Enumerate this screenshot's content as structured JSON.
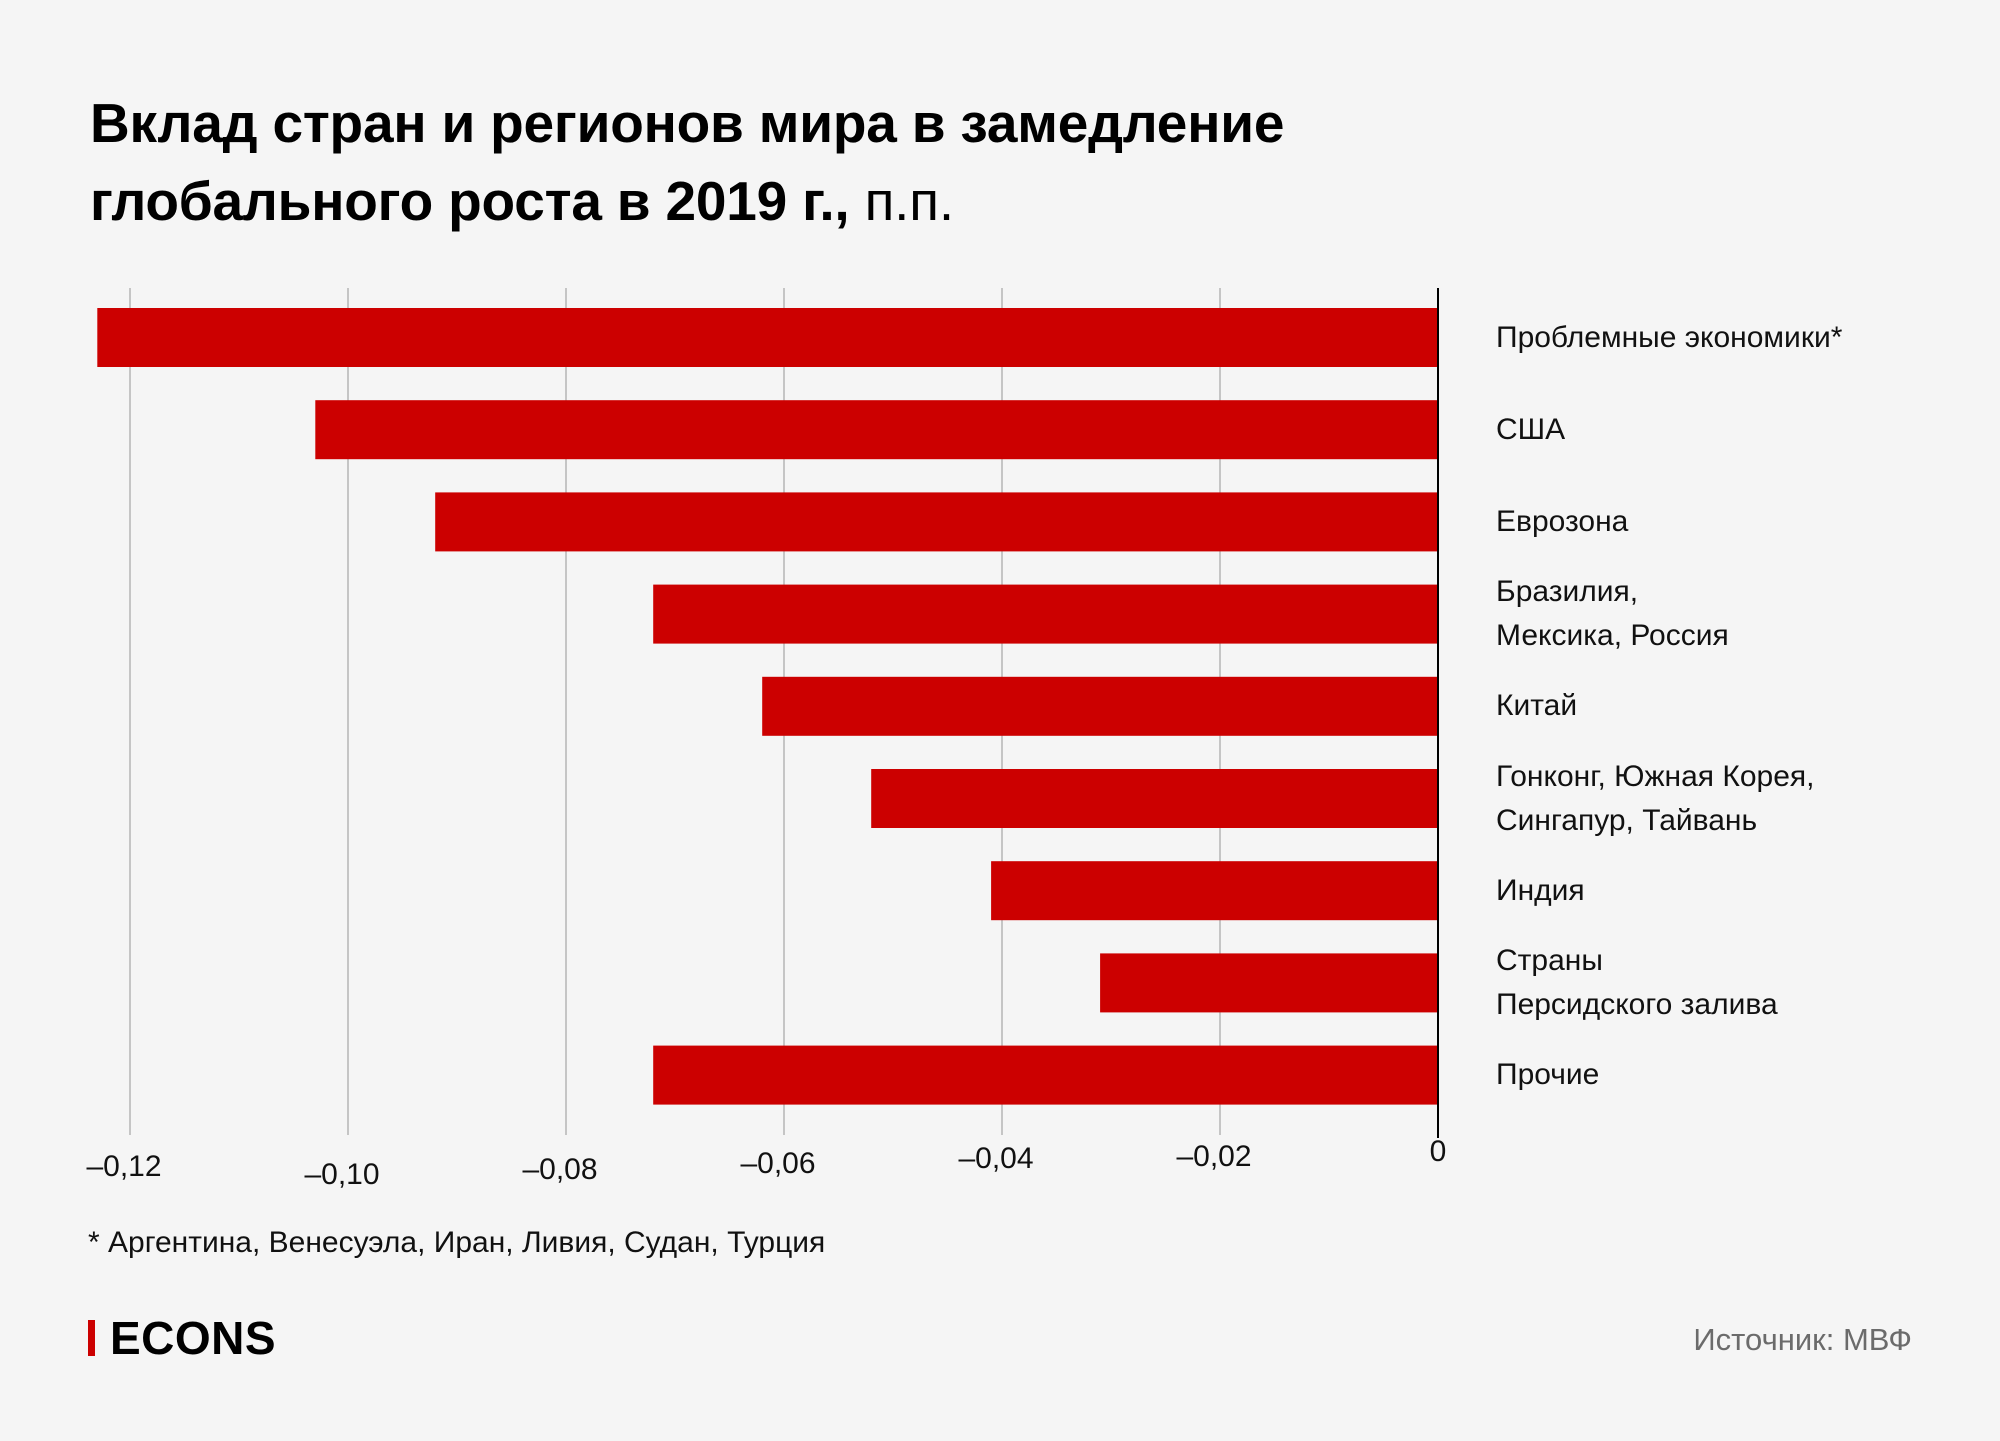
{
  "header": {
    "title_bold_line1": "Вклад стран и регионов мира в замедление",
    "title_bold_line2": "глобального роста в 2019 г.,",
    "title_unit": " п.п."
  },
  "chart_data": {
    "type": "bar",
    "orientation": "horizontal",
    "title": "Вклад стран и регионов мира в замедление глобального роста в 2019 г., п.п.",
    "xlabel": "",
    "ylabel": "",
    "xlim": [
      -0.124,
      0
    ],
    "grid": true,
    "bar_color": "#cc0000",
    "x_ticks": [
      -0.12,
      -0.1,
      -0.08,
      -0.06,
      -0.04,
      -0.02,
      0
    ],
    "x_tick_labels": [
      "–0,12",
      "–0,10",
      "–0,08",
      "–0,06",
      "–0,04",
      "–0,02",
      "0"
    ],
    "categories": [
      "Проблемные экономики*",
      "США",
      "Еврозона",
      "Бразилия,\nМексика, Россия",
      "Китай",
      "Гонконг, Южная Корея,\nСингапур, Тайвань",
      "Индия",
      "Страны\nПерсидского залива",
      "Прочие"
    ],
    "values": [
      -0.123,
      -0.103,
      -0.092,
      -0.072,
      -0.062,
      -0.052,
      -0.041,
      -0.031,
      -0.072
    ]
  },
  "footnote": "* Аргентина, Венесуэла, Иран, Ливия, Судан, Турция",
  "footer": {
    "logo_text": "ECONS",
    "source": "Источник: МВФ"
  }
}
